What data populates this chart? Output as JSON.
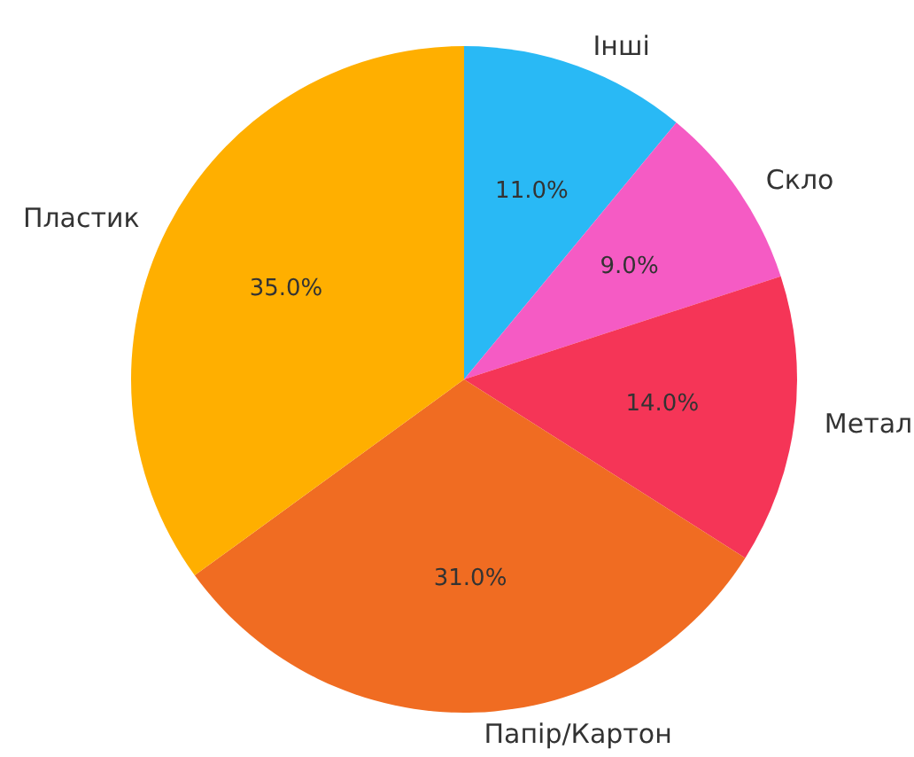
{
  "chart_data": {
    "type": "pie",
    "categories": [
      "Інші",
      "Скло",
      "Метал",
      "Папір/Картон",
      "Пластик"
    ],
    "values": [
      11,
      9,
      14,
      31,
      35
    ],
    "colors": [
      "#29b9f5",
      "#f55bc4",
      "#f53557",
      "#f06c22",
      "#ffaf00"
    ],
    "value_labels": [
      "11.0%",
      "9.0%",
      "14.0%",
      "31.0%",
      "35.0%"
    ]
  }
}
